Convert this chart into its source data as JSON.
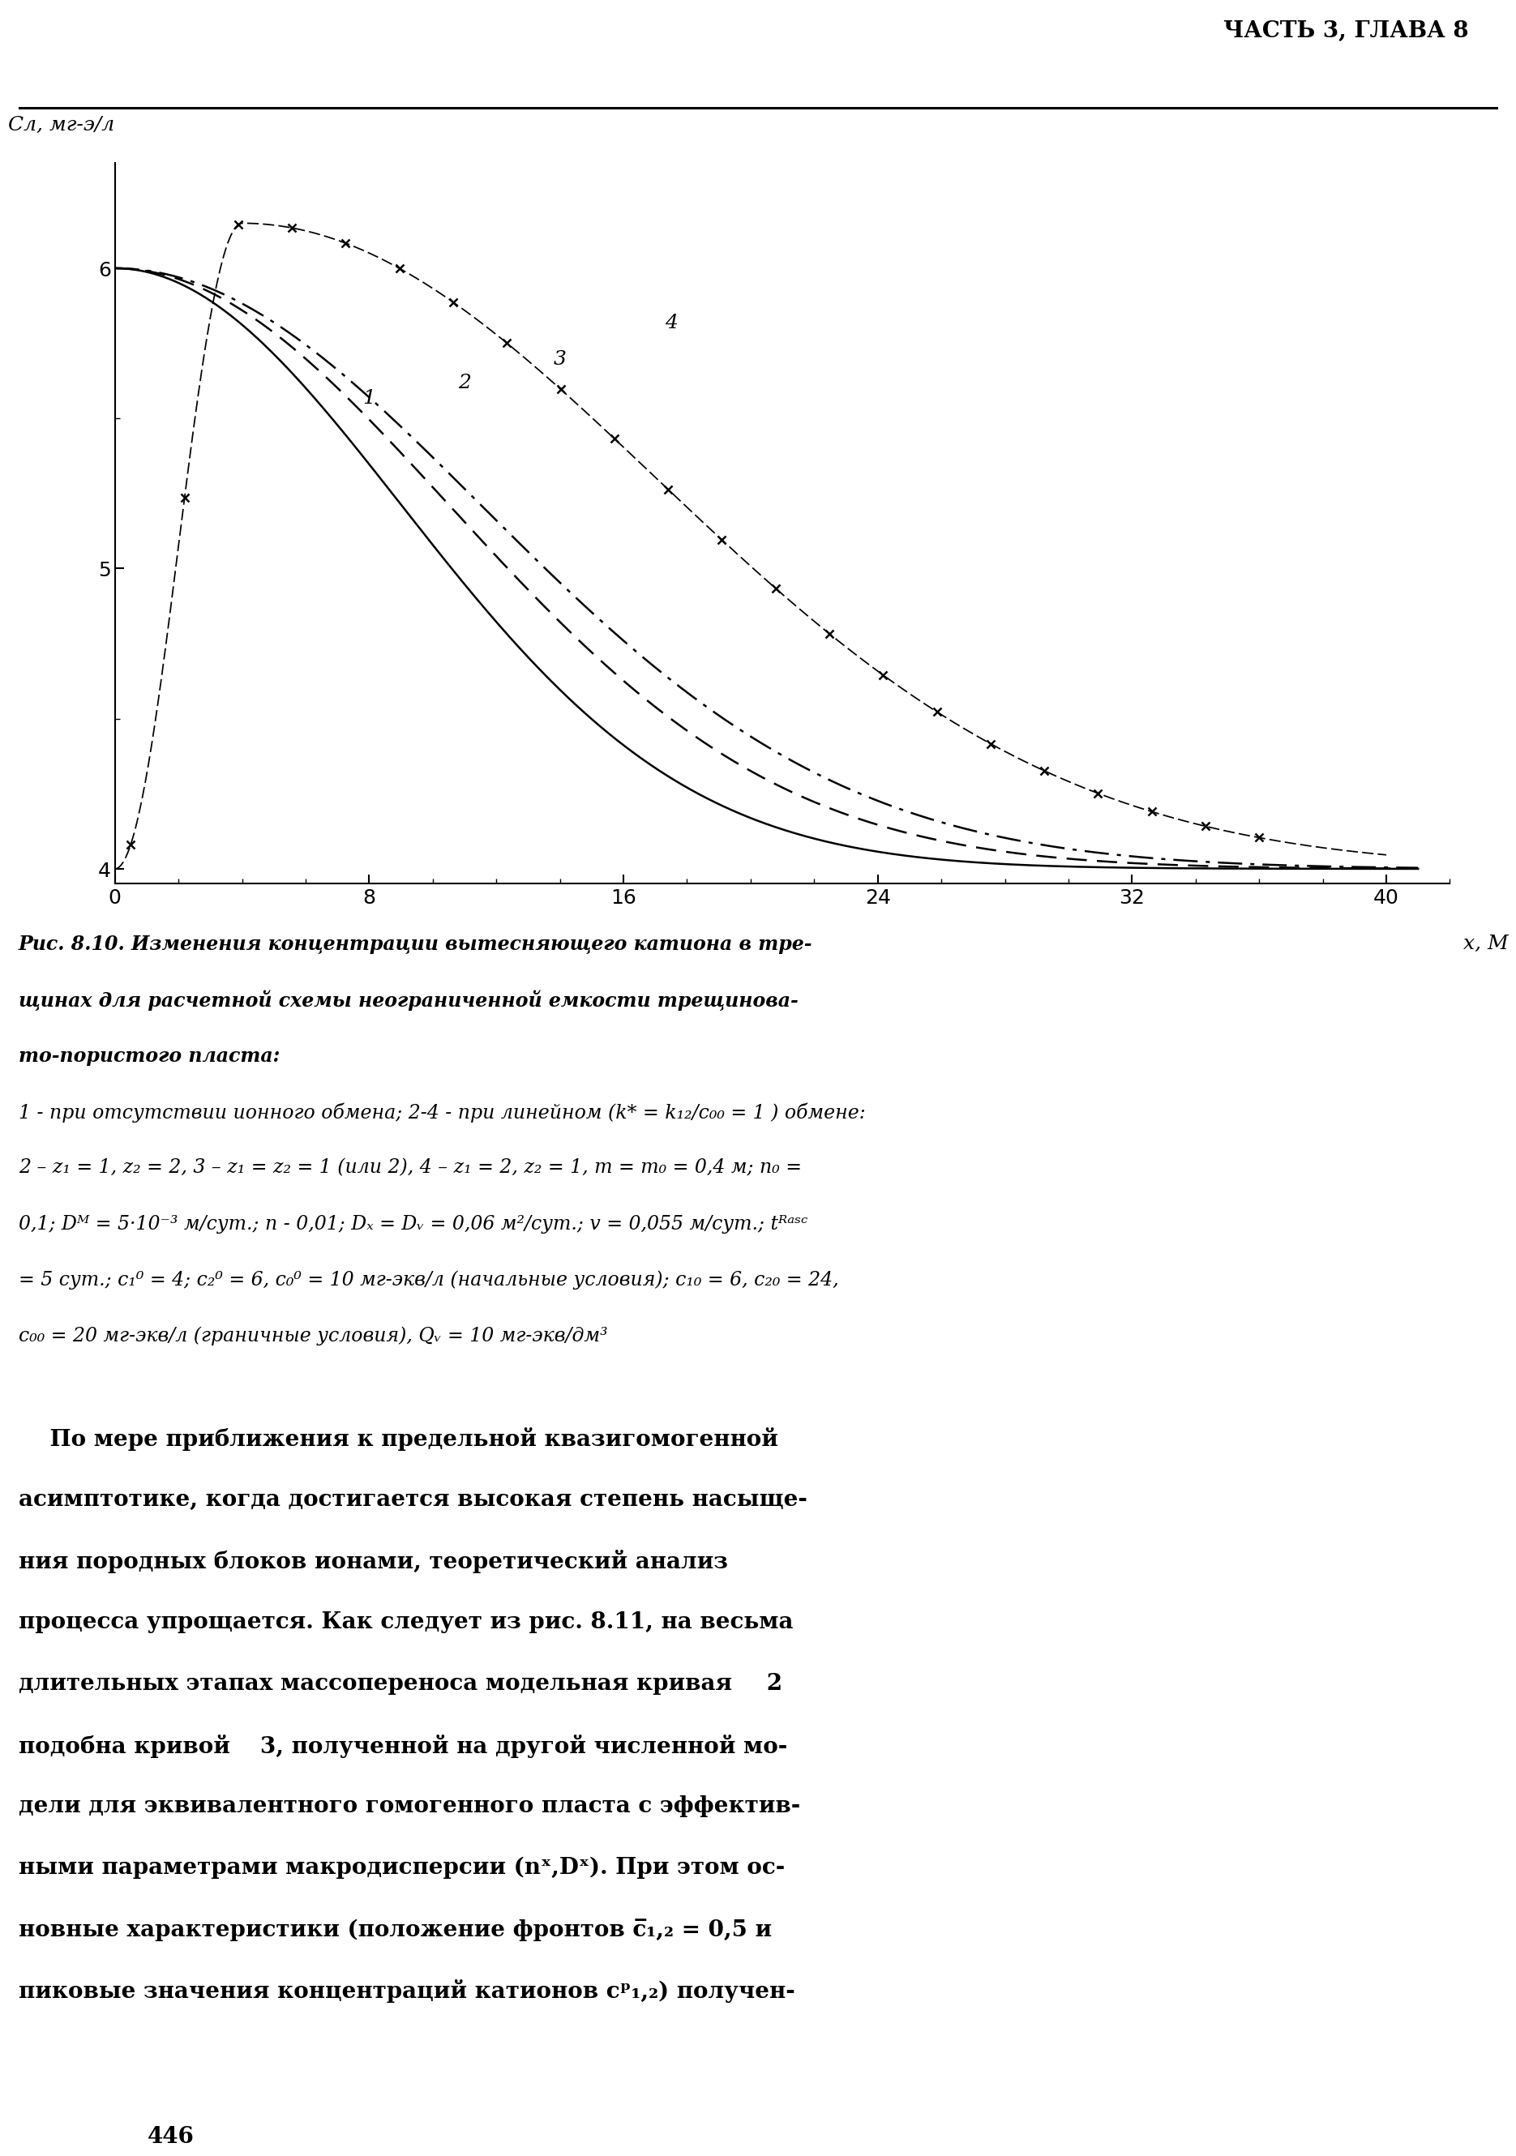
{
  "title_header": "ЧАСТЬ 3, ГЛАВА 8",
  "ylabel": "Сл, мг-э/л",
  "xlabel": "x, М",
  "xlim": [
    0,
    42
  ],
  "ylim": [
    3.95,
    6.35
  ],
  "xticks": [
    0,
    8,
    16,
    24,
    32,
    40
  ],
  "yticks": [
    4,
    5,
    6
  ],
  "page_number": "446",
  "background_color": "#ffffff",
  "line_color": "#000000",
  "fig_width": 19.84,
  "fig_height": 27.36
}
